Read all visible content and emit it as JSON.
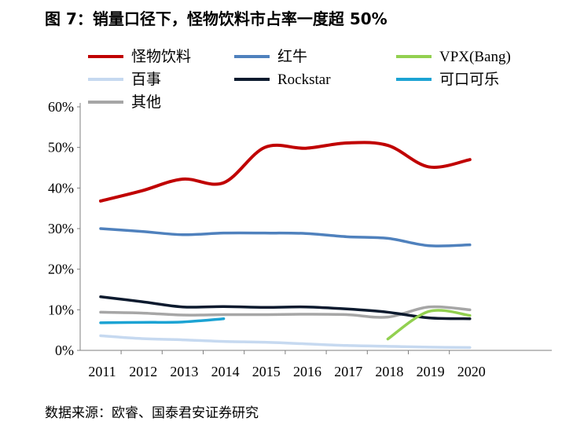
{
  "title": "图 7：销量口径下，怪物饮料市占率一度超 50%",
  "source": "数据来源：欧睿、国泰君安证券研究",
  "chart_data": {
    "type": "line",
    "categories": [
      "2011",
      "2012",
      "2013",
      "2014",
      "2015",
      "2016",
      "2017",
      "2018",
      "2019",
      "2020"
    ],
    "ylim": [
      0,
      60
    ],
    "yticks": [
      "0%",
      "10%",
      "20%",
      "30%",
      "40%",
      "50%",
      "60%"
    ],
    "grid": false,
    "legend_placement": "top",
    "series": [
      {
        "name": "怪物饮料",
        "color": "#c00000",
        "values": [
          36.8,
          39.3,
          42.2,
          41.3,
          50.0,
          49.8,
          51.1,
          50.5,
          45.2,
          47.0
        ]
      },
      {
        "name": "红牛",
        "color": "#4f81bd",
        "values": [
          30.0,
          29.3,
          28.5,
          28.9,
          28.9,
          28.8,
          28.0,
          27.6,
          25.8,
          26.0
        ]
      },
      {
        "name": "VPX(Bang)",
        "color": "#92d050",
        "values": [
          null,
          null,
          null,
          null,
          null,
          null,
          null,
          2.8,
          9.6,
          8.6
        ]
      },
      {
        "name": "百事",
        "color": "#c6d9f0",
        "values": [
          3.6,
          2.9,
          2.6,
          2.2,
          2.0,
          1.6,
          1.2,
          1.0,
          0.8,
          0.7
        ]
      },
      {
        "name": "Rockstar",
        "color": "#0c1a2e",
        "values": [
          13.2,
          12.0,
          10.7,
          10.8,
          10.6,
          10.7,
          10.2,
          9.4,
          8.0,
          7.8
        ]
      },
      {
        "name": "可口可乐",
        "color": "#1ca3d3",
        "values": [
          6.8,
          6.9,
          7.0,
          7.8,
          null,
          null,
          null,
          null,
          null,
          null
        ]
      },
      {
        "name": "其他",
        "color": "#a6a6a6",
        "values": [
          9.4,
          9.2,
          8.7,
          8.8,
          8.8,
          8.9,
          8.8,
          8.2,
          10.7,
          10.0
        ]
      }
    ]
  }
}
